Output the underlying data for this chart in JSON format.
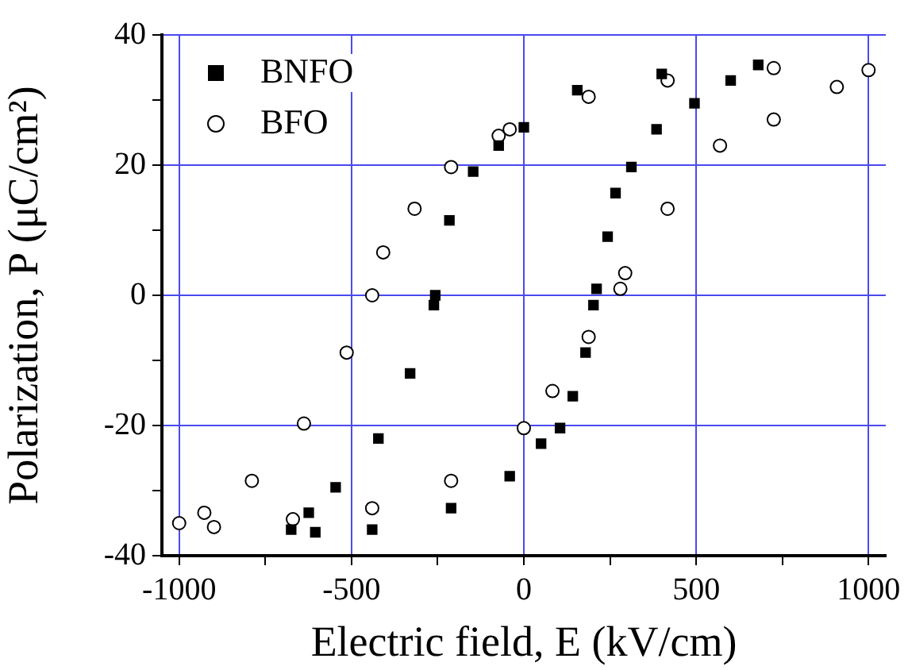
{
  "chart_data": {
    "type": "scatter",
    "xlabel": "Electric field, E (kV/cm)",
    "ylabel": "Polarization, P (μC/cm²)",
    "xlim": [
      -1050,
      1050
    ],
    "ylim": [
      -40,
      40
    ],
    "xticks": [
      -1000,
      {
        "value": -750,
        "label": null
      },
      -500,
      {
        "value": -250,
        "label": null
      },
      0,
      {
        "value": 250,
        "label": null
      },
      500,
      {
        "value": 750,
        "label": null
      },
      1000
    ],
    "yticks": [
      -40,
      {
        "value": -30,
        "label": null
      },
      -20,
      {
        "value": -10,
        "label": null
      },
      0,
      {
        "value": 10,
        "label": null
      },
      20,
      {
        "value": 30,
        "label": null
      },
      40
    ],
    "grid": true,
    "legend": "top left",
    "series": [
      {
        "name": "BNFO",
        "color": "#000000",
        "marker": "square",
        "x": [
          680,
          600,
          495,
          385,
          312,
          266,
          243,
          211,
          202,
          179,
          142,
          105,
          50,
          -41,
          -211,
          -440,
          -605,
          -675,
          -624,
          -546,
          -422,
          -330,
          -261,
          -257,
          -216,
          -147,
          -73,
          0,
          155,
          400
        ],
        "values": [
          35.4,
          33,
          29.5,
          25.5,
          19.7,
          15.7,
          9,
          1,
          -1.5,
          -8.8,
          -15.5,
          -20.4,
          -22.8,
          -27.8,
          -32.7,
          -36,
          -36.4,
          -36,
          -33.4,
          -29.5,
          -22,
          -12,
          -1.5,
          0,
          11.5,
          19,
          23,
          25.8,
          31.5,
          34
        ]
      },
      {
        "name": "BFO",
        "color": "#000000",
        "marker": "circle",
        "x": [
          1000,
          725,
          417,
          188,
          -41,
          -73,
          -211,
          -317,
          -408,
          -440,
          -514,
          -638,
          -789,
          -927,
          -1000,
          -899,
          -670,
          -440,
          -211,
          0,
          83,
          188,
          280,
          294,
          417,
          569,
          725,
          908
        ],
        "values": [
          34.6,
          34.9,
          33,
          30.5,
          25.5,
          24.5,
          19.7,
          13.3,
          6.6,
          0,
          -8.8,
          -19.7,
          -28.5,
          -33.4,
          -35,
          -35.6,
          -34.4,
          -32.7,
          -28.5,
          -20.4,
          -14.7,
          -6.4,
          1,
          3.4,
          13.3,
          23,
          27,
          32
        ]
      }
    ]
  }
}
